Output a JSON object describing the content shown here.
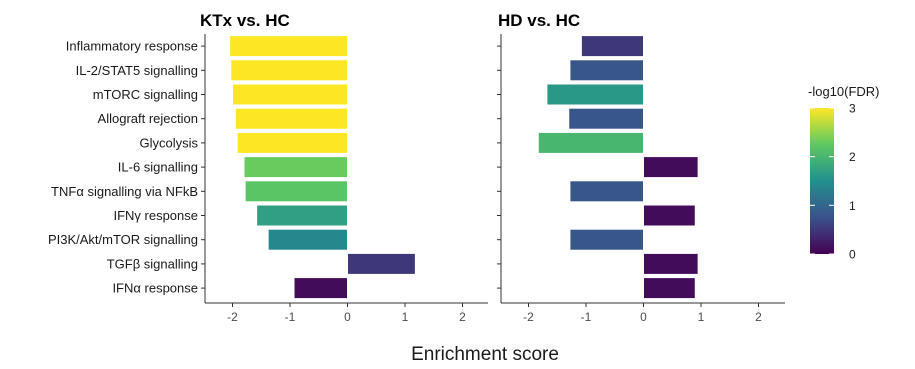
{
  "chart_data": {
    "type": "bar",
    "orientation": "horizontal",
    "xlabel": "Enrichment score",
    "xlim": [
      -2.3,
      2.3
    ],
    "xticks": [
      -2,
      -1,
      0,
      1,
      2
    ],
    "categories": [
      "Inflammatory response",
      "IL-2/STAT5 signalling",
      "mTORC signalling",
      "Allograft rejection",
      "Glycolysis",
      "IL-6 signalling",
      "TNFα signalling via NFkB",
      "IFNγ response",
      "PI3K/Akt/mTOR signalling",
      "TGFβ signalling",
      "IFNα response"
    ],
    "panels": [
      {
        "title": "KTx vs. HC",
        "values": [
          -2.05,
          -2.03,
          -2.0,
          -1.95,
          -1.92,
          -1.8,
          -1.78,
          -1.58,
          -1.38,
          1.18,
          -0.93
        ],
        "neg_log10_fdr": [
          3.0,
          3.0,
          3.0,
          3.0,
          3.0,
          2.3,
          2.2,
          1.7,
          1.4,
          0.5,
          0.1
        ]
      },
      {
        "title": "HD vs. HC",
        "values": [
          -1.08,
          -1.28,
          -1.68,
          -1.3,
          -1.83,
          0.95,
          -1.28,
          0.9,
          -1.28,
          0.95,
          0.9
        ],
        "neg_log10_fdr": [
          0.5,
          0.8,
          1.6,
          0.8,
          2.0,
          0.1,
          0.8,
          0.1,
          0.8,
          0.1,
          0.1
        ]
      }
    ],
    "legend": {
      "title": "-log10(FDR)",
      "ticks": [
        "0",
        "1",
        "2",
        "3"
      ],
      "range": [
        0,
        3
      ],
      "position": "right",
      "colormap": [
        "#440154",
        "#3b528b",
        "#21908d",
        "#5dc962",
        "#fde725"
      ]
    },
    "grid": false
  }
}
